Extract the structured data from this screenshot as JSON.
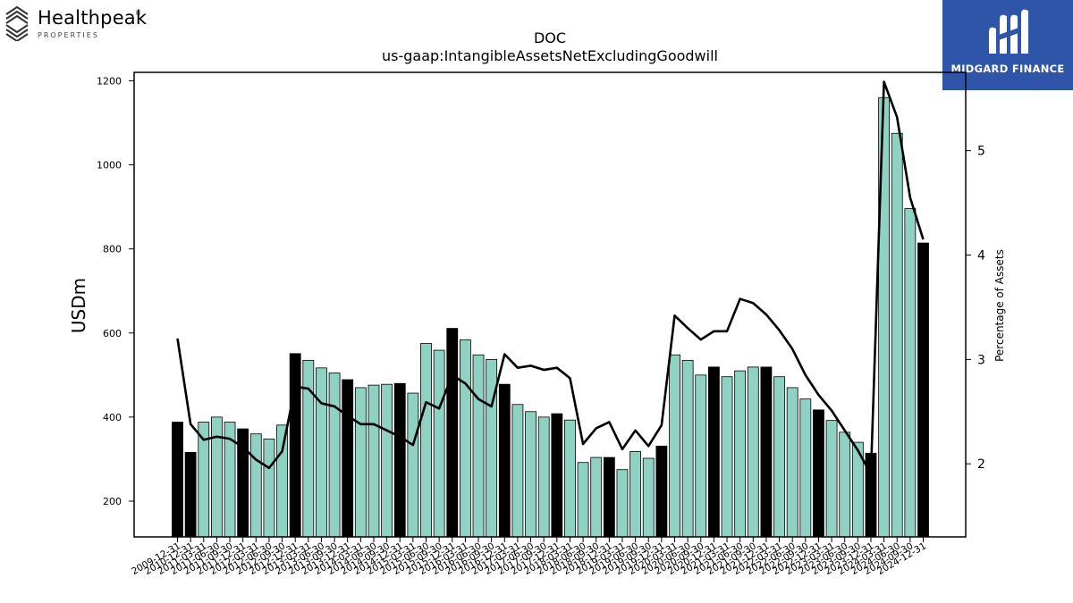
{
  "logos": {
    "left": {
      "name": "Healthpeak",
      "mark": "®",
      "subtitle": "PROPERTIES"
    },
    "right": {
      "name": "MIDGARD FINANCE",
      "background": "#2f55a8"
    }
  },
  "chart_data": {
    "type": "bar",
    "title": "DOC",
    "subtitle": "us-gaap:IntangibleAssetsNetExcludingGoodwill",
    "ylabel": "USDm",
    "y2label": "Percentage of Assets",
    "ylim": [
      115,
      1220
    ],
    "y2lim": [
      1.3,
      5.75
    ],
    "yticks": [
      200,
      400,
      600,
      800,
      1000,
      1200
    ],
    "y2ticks": [
      2,
      3,
      4,
      5
    ],
    "grid": false,
    "colors": {
      "bar": "#8fd1c2",
      "bar_q4": "#000000",
      "line": "#000000"
    },
    "categories": [
      "2009-12-31",
      "2010-12-31",
      "2011-03-31",
      "2011-06-30",
      "2011-09-30",
      "2011-12-31",
      "2012-03-31",
      "2012-06-30",
      "2012-09-30",
      "2012-12-31",
      "2013-03-31",
      "2013-06-30",
      "2013-09-30",
      "2013-12-31",
      "2014-03-31",
      "2014-06-30",
      "2014-09-30",
      "2014-12-31",
      "2015-03-31",
      "2015-06-30",
      "2015-09-30",
      "2015-12-31",
      "2016-03-31",
      "2016-06-30",
      "2016-09-30",
      "2016-12-31",
      "2017-03-31",
      "2017-06-30",
      "2017-09-30",
      "2017-12-31",
      "2018-03-31",
      "2018-06-30",
      "2018-09-30",
      "2018-12-31",
      "2019-03-31",
      "2019-06-30",
      "2019-09-30",
      "2019-12-31",
      "2020-03-31",
      "2020-06-30",
      "2020-09-30",
      "2020-12-31",
      "2021-03-31",
      "2021-06-30",
      "2021-09-30",
      "2021-12-31",
      "2022-03-31",
      "2022-06-30",
      "2022-09-30",
      "2022-12-31",
      "2023-03-31",
      "2023-06-30",
      "2023-09-30",
      "2023-12-31",
      "2024-03-31",
      "2024-06-30",
      "2024-09-30",
      "2024-12-31"
    ],
    "series": [
      {
        "type": "bar",
        "axis": "left",
        "values": [
          388,
          316,
          388,
          400,
          388,
          372,
          360,
          348,
          381,
          551,
          535,
          517,
          505,
          489,
          470,
          476,
          478,
          480,
          457,
          575,
          559,
          611,
          584,
          548,
          537,
          478,
          430,
          413,
          400,
          408,
          393,
          292,
          304,
          304,
          275,
          318,
          302,
          331,
          548,
          535,
          500,
          519,
          496,
          510,
          519,
          519,
          496,
          470,
          443,
          417,
          392,
          364,
          340,
          314,
          1160,
          1075,
          896,
          814
        ]
      },
      {
        "type": "line",
        "axis": "right",
        "values": [
          3.2,
          2.38,
          2.23,
          2.26,
          2.24,
          2.16,
          2.04,
          1.96,
          2.12,
          2.74,
          2.72,
          2.58,
          2.55,
          2.46,
          2.38,
          2.38,
          2.32,
          2.26,
          2.18,
          2.59,
          2.53,
          2.85,
          2.77,
          2.62,
          2.55,
          3.05,
          2.92,
          2.94,
          2.9,
          2.92,
          2.82,
          2.19,
          2.34,
          2.4,
          2.14,
          2.32,
          2.17,
          2.37,
          3.42,
          3.3,
          3.19,
          3.27,
          3.27,
          3.58,
          3.54,
          3.43,
          3.28,
          3.1,
          2.85,
          2.66,
          2.51,
          2.32,
          2.13,
          1.9,
          5.66,
          5.32,
          4.55,
          4.15
        ]
      }
    ]
  }
}
